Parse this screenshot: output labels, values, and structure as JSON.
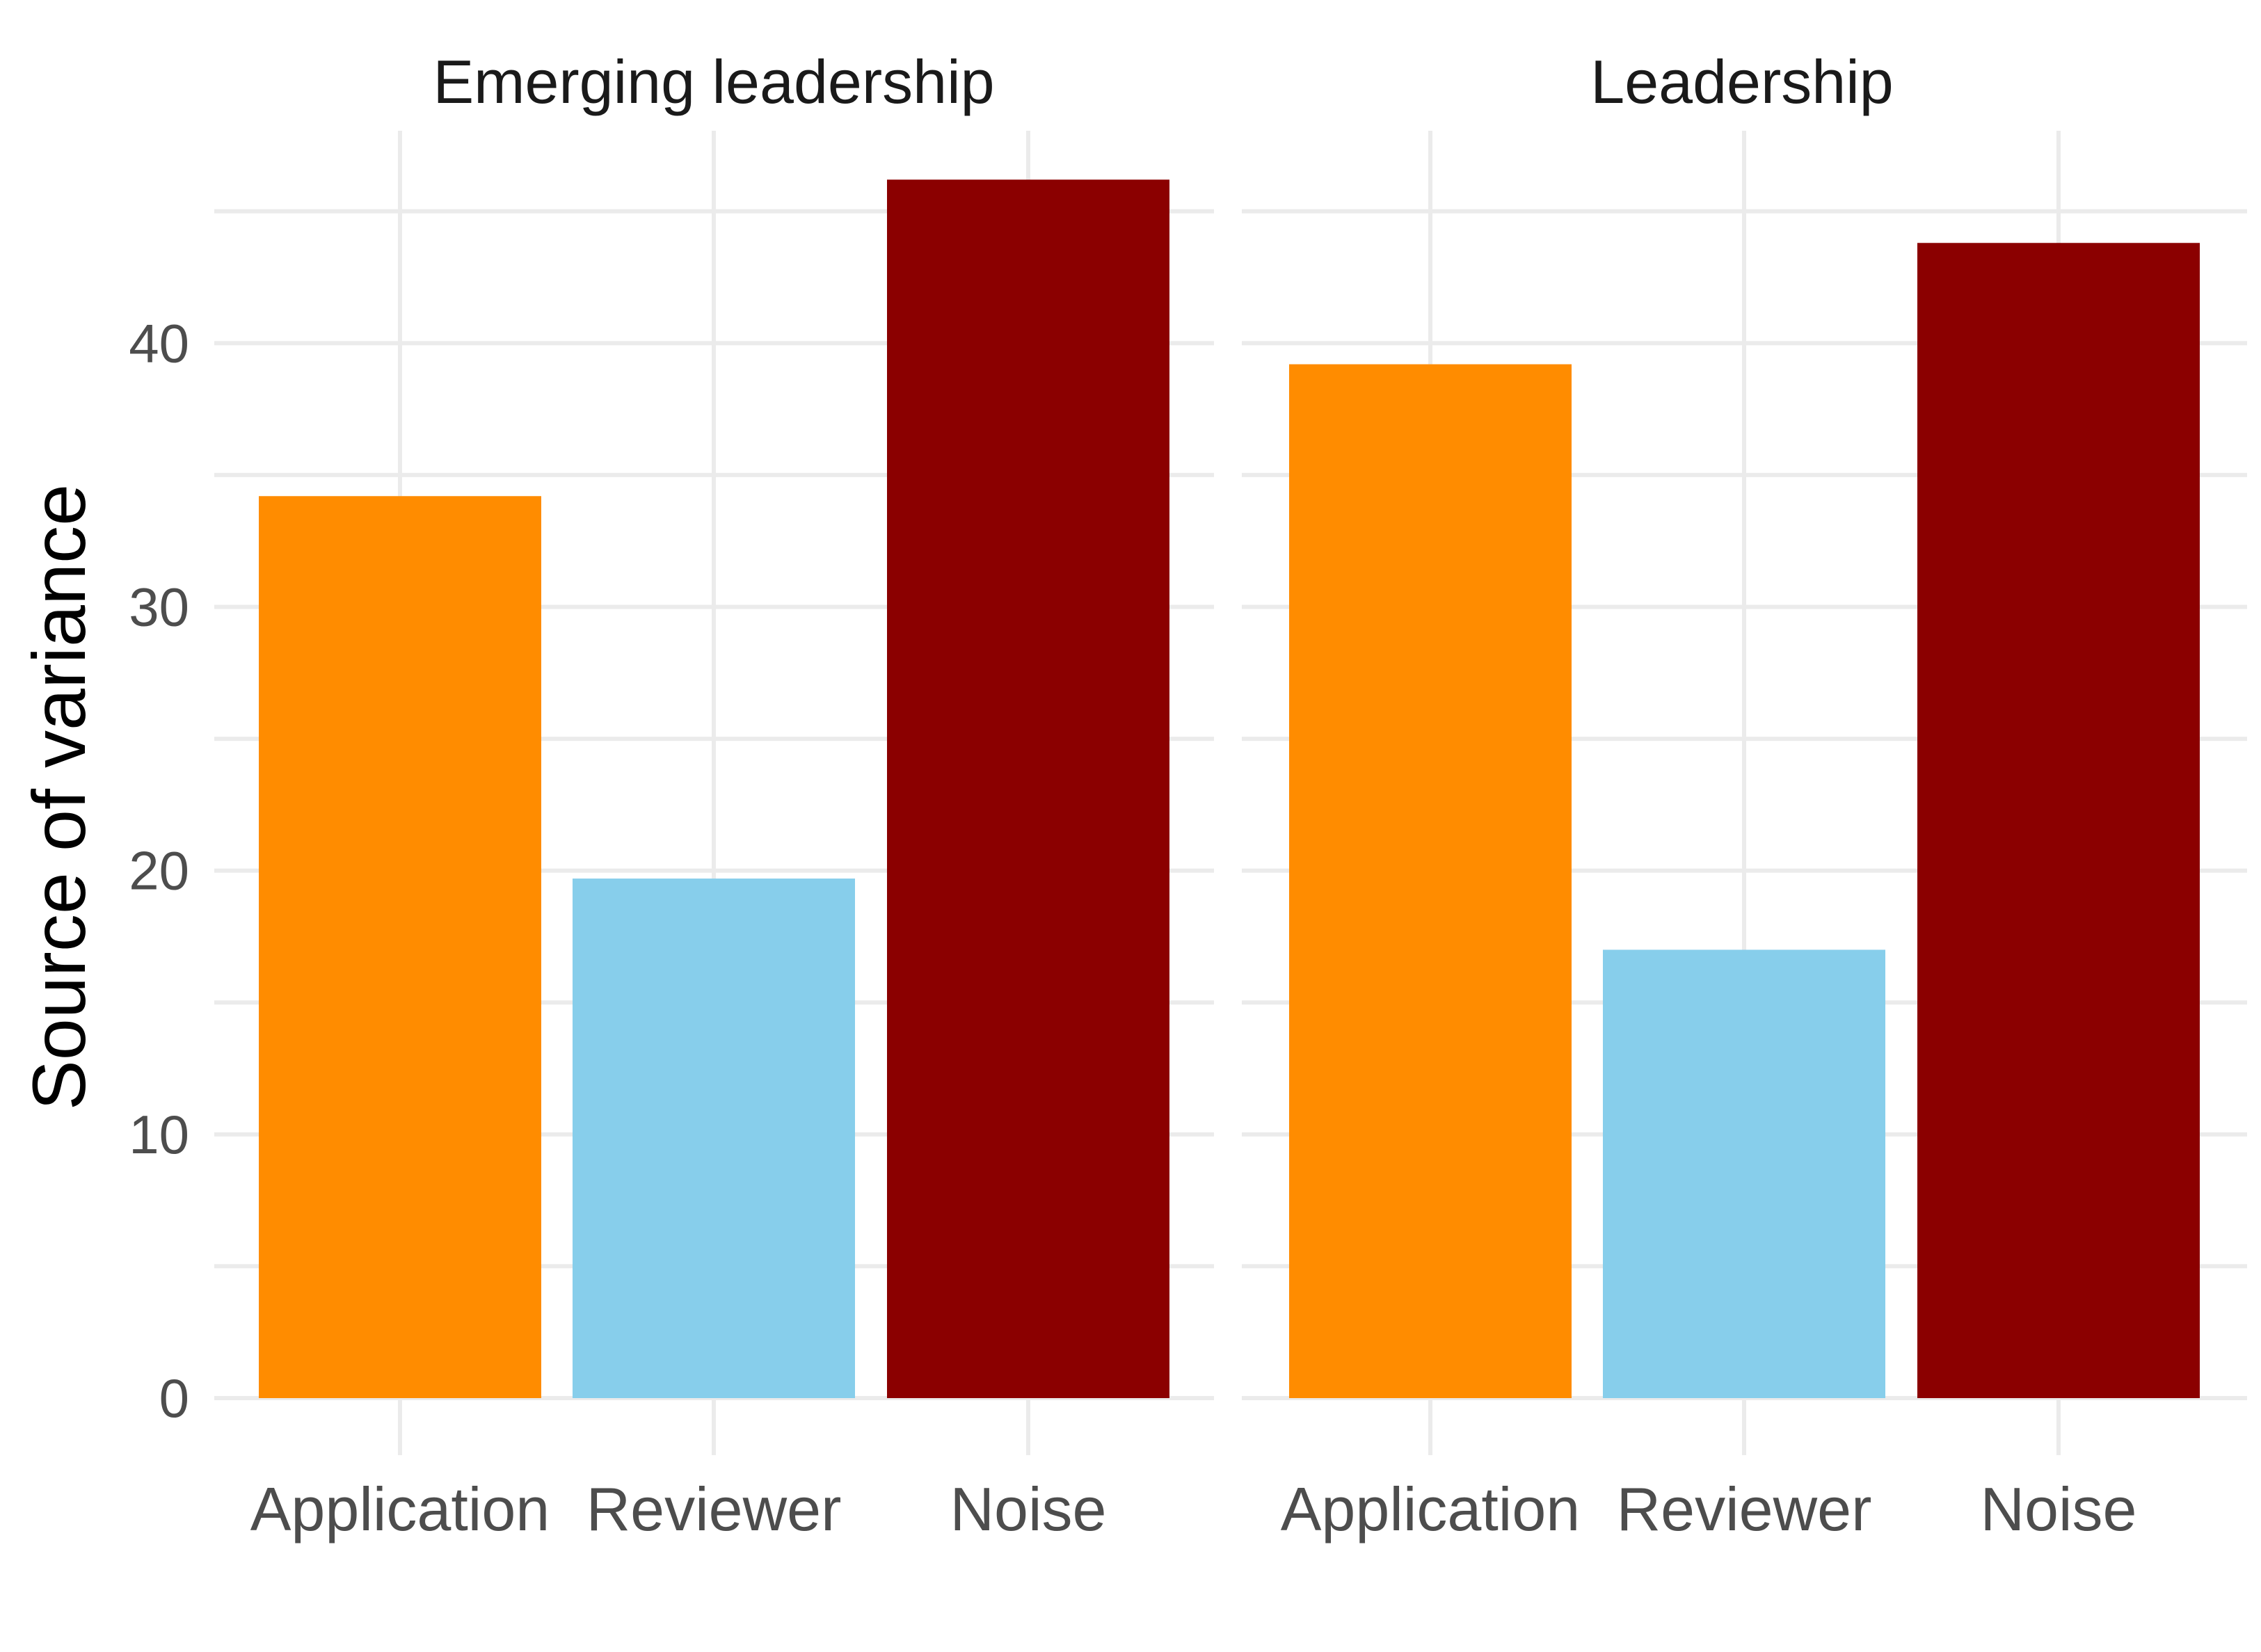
{
  "chart_data": {
    "type": "bar",
    "ylabel": "Source of variance",
    "xlabel": "",
    "ylim": [
      0,
      48
    ],
    "yticks": [
      0,
      10,
      20,
      30,
      40
    ],
    "grid": true,
    "legend": "none",
    "categories": [
      "Application",
      "Reviewer",
      "Noise"
    ],
    "colors": {
      "Application": "#FF8C00",
      "Reviewer": "#87CEEB",
      "Noise": "#8B0000"
    },
    "facets": [
      {
        "title": "Emerging leadership",
        "values": [
          34.2,
          19.7,
          46.2
        ]
      },
      {
        "title": "Leadership",
        "values": [
          39.2,
          17.0,
          43.8
        ]
      }
    ]
  }
}
